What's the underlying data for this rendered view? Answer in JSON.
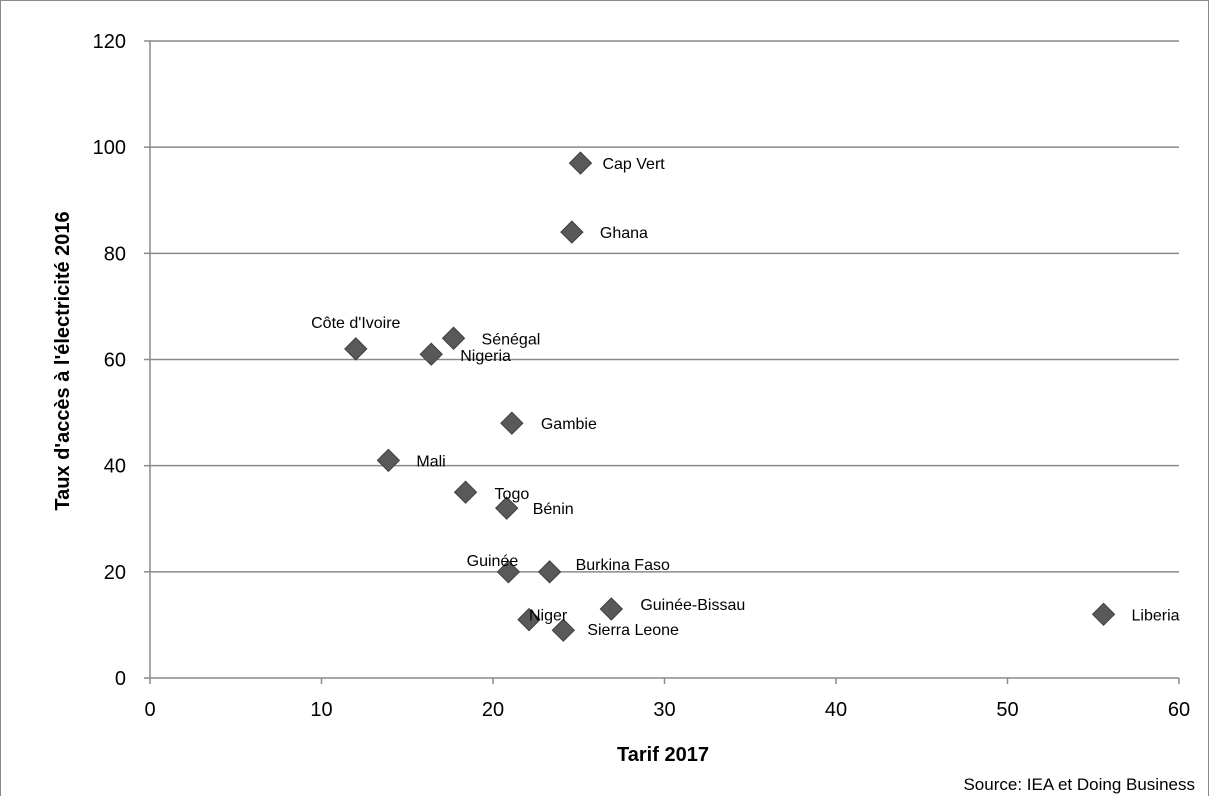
{
  "chart_data": {
    "type": "scatter",
    "xlabel": "Tarif 2017",
    "ylabel": "Taux d'accès à l'électricité 2016",
    "xlim": [
      0,
      60
    ],
    "ylim": [
      0,
      120
    ],
    "x_ticks": [
      "0",
      "10",
      "20",
      "30",
      "40",
      "50",
      "60"
    ],
    "y_ticks": [
      "0",
      "20",
      "40",
      "60",
      "80",
      "100",
      "120"
    ],
    "grid": "horizontal",
    "legend": "none",
    "marker": "diamond",
    "marker_color": "#595959",
    "source": "Source: IEA et Doing Business",
    "points": [
      {
        "label": "Cap Vert",
        "x": 25.1,
        "y": 97
      },
      {
        "label": "Ghana",
        "x": 24.6,
        "y": 84
      },
      {
        "label": "Côte d'Ivoire",
        "x": 12.0,
        "y": 62
      },
      {
        "label": "Sénégal",
        "x": 17.7,
        "y": 64
      },
      {
        "label": "Nigeria",
        "x": 16.4,
        "y": 61
      },
      {
        "label": "Gambie",
        "x": 21.1,
        "y": 48
      },
      {
        "label": "Mali",
        "x": 13.9,
        "y": 41
      },
      {
        "label": "Togo",
        "x": 18.4,
        "y": 35
      },
      {
        "label": "Bénin",
        "x": 20.8,
        "y": 32
      },
      {
        "label": "Guinée",
        "x": 20.9,
        "y": 20
      },
      {
        "label": "Burkina Faso",
        "x": 23.3,
        "y": 20
      },
      {
        "label": "Guinée-Bissau",
        "x": 26.9,
        "y": 13
      },
      {
        "label": "Niger",
        "x": 22.1,
        "y": 11
      },
      {
        "label": "Sierra Leone",
        "x": 24.1,
        "y": 9
      },
      {
        "label": "Liberia",
        "x": 55.6,
        "y": 12
      }
    ]
  }
}
